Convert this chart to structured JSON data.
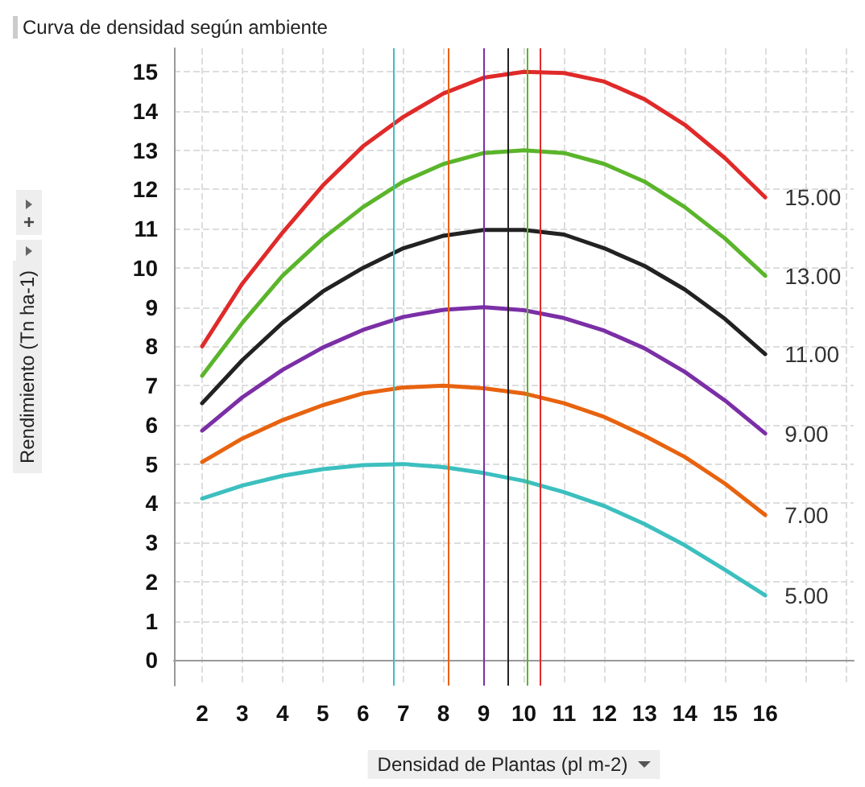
{
  "chart_data": {
    "type": "line",
    "title": "Curva de densidad según ambiente",
    "xlabel": "Densidad de Plantas (pl m-2)",
    "ylabel": "Rendimiento (Tn ha-1)",
    "x": [
      2,
      3,
      4,
      5,
      6,
      7,
      8,
      9,
      10,
      11,
      12,
      13,
      14,
      15,
      16
    ],
    "series": [
      {
        "name": "15.00",
        "color": "#e02a2a",
        "values": [
          8.0,
          9.6,
          10.9,
          12.1,
          13.1,
          13.85,
          14.45,
          14.85,
          15.0,
          14.97,
          14.75,
          14.3,
          13.65,
          12.8,
          11.8
        ]
      },
      {
        "name": "13.00",
        "color": "#5ab52a",
        "values": [
          7.25,
          8.6,
          9.8,
          10.75,
          11.55,
          12.2,
          12.65,
          12.93,
          13.0,
          12.93,
          12.65,
          12.2,
          11.55,
          10.75,
          9.8
        ]
      },
      {
        "name": "11.00",
        "color": "#222222",
        "values": [
          6.55,
          7.65,
          8.6,
          9.4,
          10.0,
          10.5,
          10.82,
          10.97,
          10.97,
          10.85,
          10.5,
          10.05,
          9.45,
          8.7,
          7.8
        ]
      },
      {
        "name": "9.00",
        "color": "#7b2fa6",
        "values": [
          5.85,
          6.7,
          7.4,
          7.97,
          8.42,
          8.75,
          8.93,
          9.0,
          8.92,
          8.72,
          8.4,
          7.95,
          7.35,
          6.62,
          5.78
        ]
      },
      {
        "name": "7.00",
        "color": "#e8630f",
        "values": [
          5.05,
          5.65,
          6.12,
          6.5,
          6.8,
          6.95,
          7.0,
          6.93,
          6.8,
          6.55,
          6.2,
          5.72,
          5.18,
          4.5,
          3.7
        ]
      },
      {
        "name": "5.00",
        "color": "#3cbfbf",
        "values": [
          4.12,
          4.45,
          4.7,
          4.87,
          4.97,
          5.0,
          4.92,
          4.77,
          4.57,
          4.28,
          3.93,
          3.47,
          2.93,
          2.3,
          1.65
        ]
      }
    ],
    "ref_lines": [
      {
        "axis": "x",
        "value": 6.75,
        "color": "#3cbfbf"
      },
      {
        "axis": "x",
        "value": 8.13,
        "color": "#e8630f"
      },
      {
        "axis": "x",
        "value": 8.99,
        "color": "#7b2fa6"
      },
      {
        "axis": "x",
        "value": 9.6,
        "color": "#222222"
      },
      {
        "axis": "x",
        "value": 10.07,
        "color": "#5ab52a"
      },
      {
        "axis": "x",
        "value": 10.4,
        "color": "#e02a2a"
      }
    ],
    "xlim": [
      1.3,
      18.2
    ],
    "xticks": [
      2,
      3,
      4,
      5,
      6,
      7,
      8,
      9,
      10,
      11,
      12,
      13,
      14,
      15,
      16,
      {
        "value": 17,
        "label": null
      },
      {
        "value": 18,
        "label": null
      }
    ],
    "ylim": [
      -0.65,
      15.6
    ],
    "yticks": [
      0,
      1,
      2,
      3,
      4,
      5,
      6,
      7,
      8,
      9,
      10,
      11,
      12,
      13,
      14,
      15
    ],
    "grid": true,
    "legend": false,
    "marker": "none",
    "line_style": "solid"
  }
}
